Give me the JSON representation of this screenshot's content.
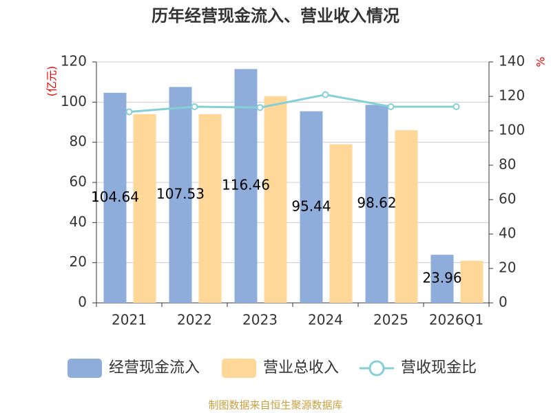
{
  "chart_data": {
    "type": "bar-line",
    "title": "历年经营现金流入、营业收入情况",
    "y_label": "(亿元)",
    "y2_label": "%",
    "source": "制图数据来自恒生聚源数据库",
    "categories": [
      "2021",
      "2022",
      "2023",
      "2024",
      "2025",
      "2026Q1"
    ],
    "series": [
      {
        "name": "经营现金流入",
        "type": "bar",
        "color": "#8eaddb",
        "values": [
          104.64,
          107.53,
          116.46,
          95.44,
          98.62,
          23.96
        ]
      },
      {
        "name": "营业总收入",
        "type": "bar",
        "color": "#ffd899",
        "values": [
          94,
          94,
          103,
          79,
          86,
          21
        ]
      },
      {
        "name": "营收现金比",
        "type": "line",
        "axis": "y2",
        "color": "#85d0d6",
        "values": [
          111,
          114,
          113.5,
          121,
          114,
          114
        ]
      }
    ],
    "ylim": [
      0,
      120
    ],
    "yticks": [
      0,
      20,
      40,
      60,
      80,
      100,
      120
    ],
    "y2lim": [
      0,
      140
    ],
    "y2ticks": [
      0,
      20,
      40,
      60,
      80,
      100,
      120,
      140
    ],
    "grid": true
  }
}
